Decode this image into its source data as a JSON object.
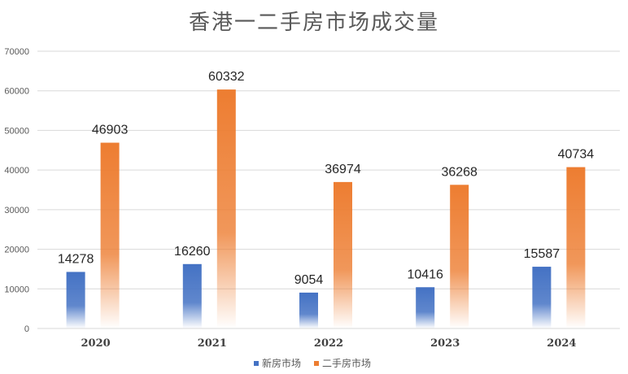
{
  "chart_data": {
    "type": "bar",
    "title": "香港一二手房市场成交量",
    "categories": [
      "2020",
      "2021",
      "2022",
      "2023",
      "2024"
    ],
    "series": [
      {
        "name": "新房市场",
        "values": [
          14278,
          16260,
          9054,
          10416,
          15587
        ],
        "color": "#4472C4"
      },
      {
        "name": "二手房市场",
        "values": [
          46903,
          60332,
          36974,
          36268,
          40734
        ],
        "color": "#ED7D31"
      }
    ],
    "y_ticks": [
      "0",
      "10000",
      "20000",
      "30000",
      "40000",
      "50000",
      "60000",
      "70000"
    ],
    "ylim": [
      0,
      70000
    ],
    "grid": true,
    "legend_position": "bottom"
  }
}
